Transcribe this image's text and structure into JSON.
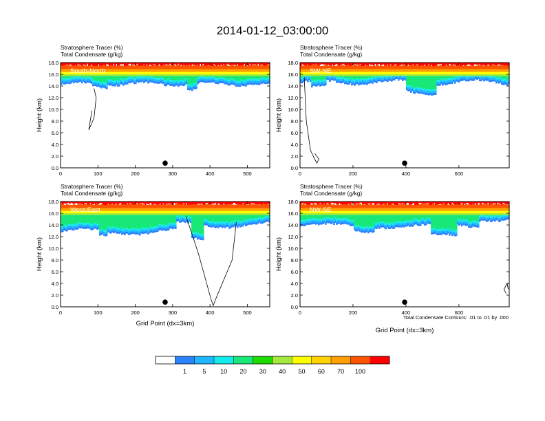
{
  "page_title": "2014-01-12_03:00:00",
  "colorbar": {
    "colors": [
      "#ffffff",
      "#2a82ff",
      "#1fb8ff",
      "#14ecec",
      "#17e878",
      "#1edc00",
      "#a6e83c",
      "#ffff00",
      "#ffd200",
      "#ff9f00",
      "#ff5400",
      "#ff0000"
    ],
    "labels": [
      "1",
      "5",
      "10",
      "20",
      "30",
      "40",
      "50",
      "60",
      "70",
      "100"
    ]
  },
  "contour_note": "Total Condensate Contours: .01 to .01 by .000",
  "chart_data": [
    {
      "type": "heatmap",
      "panel_label": "South-North",
      "header_line1": "Stratosphere Tracer   (%)",
      "header_line2": "Total Condensate   (g/kg)",
      "ylabel": "Height (km)",
      "xlabel": "",
      "xlim": [
        0,
        560
      ],
      "ylim": [
        0,
        18
      ],
      "xticks": [
        0,
        100,
        200,
        300,
        400,
        500
      ],
      "yticks": [
        "0.0",
        "2.0",
        "4.0",
        "6.0",
        "8.0",
        "10.0",
        "12.0",
        "14.0",
        "16.0",
        "18.0"
      ],
      "marker_x": 280,
      "marker_y": 0.8
    },
    {
      "type": "heatmap",
      "panel_label": "SW-NE",
      "header_line1": "Stratosphere Tracer   (%)",
      "header_line2": "Total Condensate   (g/kg)",
      "ylabel": "Height (km)",
      "xlabel": "",
      "xlim": [
        0,
        790
      ],
      "ylim": [
        0,
        18
      ],
      "xticks": [
        0,
        200,
        400,
        600
      ],
      "yticks": [
        "0.0",
        "2.0",
        "4.0",
        "6.0",
        "8.0",
        "10.0",
        "12.0",
        "14.0",
        "16.0",
        "18.0"
      ],
      "marker_x": 395,
      "marker_y": 0.8
    },
    {
      "type": "heatmap",
      "panel_label": "West-East",
      "header_line1": "Stratosphere Tracer   (%)",
      "header_line2": "Total Condensate   (g/kg)",
      "ylabel": "Height (km)",
      "xlabel": "Grid Point (dx=3km)",
      "xlim": [
        0,
        560
      ],
      "ylim": [
        0,
        18
      ],
      "xticks": [
        0,
        100,
        200,
        300,
        400,
        500
      ],
      "yticks": [
        "0.0",
        "2.0",
        "4.0",
        "6.0",
        "8.0",
        "10.0",
        "12.0",
        "14.0",
        "16.0",
        "18.0"
      ],
      "marker_x": 280,
      "marker_y": 0.8
    },
    {
      "type": "heatmap",
      "panel_label": "NW-SE",
      "header_line1": "Stratosphere Tracer   (%)",
      "header_line2": "Total Condensate   (g/kg)",
      "ylabel": "Height (km)",
      "xlabel": "Grid Point (dx=3km)",
      "xlim": [
        0,
        790
      ],
      "ylim": [
        0,
        18
      ],
      "xticks": [
        0,
        200,
        400,
        600
      ],
      "yticks": [
        "0.0",
        "2.0",
        "4.0",
        "6.0",
        "8.0",
        "10.0",
        "12.0",
        "14.0",
        "16.0",
        "18.0"
      ],
      "marker_x": 395,
      "marker_y": 0.8
    }
  ]
}
